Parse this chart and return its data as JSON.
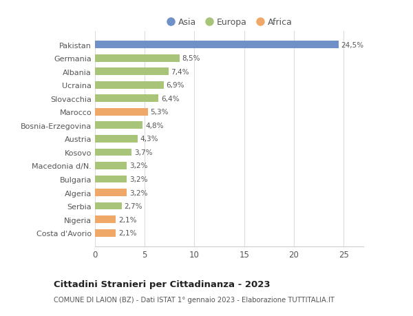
{
  "categories": [
    "Costa d'Avorio",
    "Nigeria",
    "Serbia",
    "Algeria",
    "Bulgaria",
    "Macedonia d/N.",
    "Kosovo",
    "Austria",
    "Bosnia-Erzegovina",
    "Marocco",
    "Slovacchia",
    "Ucraina",
    "Albania",
    "Germania",
    "Pakistan"
  ],
  "values": [
    2.1,
    2.1,
    2.7,
    3.2,
    3.2,
    3.2,
    3.7,
    4.3,
    4.8,
    5.3,
    6.4,
    6.9,
    7.4,
    8.5,
    24.5
  ],
  "labels": [
    "2,1%",
    "2,1%",
    "2,7%",
    "3,2%",
    "3,2%",
    "3,2%",
    "3,7%",
    "4,3%",
    "4,8%",
    "5,3%",
    "6,4%",
    "6,9%",
    "7,4%",
    "8,5%",
    "24,5%"
  ],
  "colors": [
    "#f0a868",
    "#f0a868",
    "#a8c478",
    "#f0a868",
    "#a8c478",
    "#a8c478",
    "#a8c478",
    "#a8c478",
    "#a8c478",
    "#f0a868",
    "#a8c478",
    "#a8c478",
    "#a8c478",
    "#a8c478",
    "#7090c8"
  ],
  "legend_labels": [
    "Asia",
    "Europa",
    "Africa"
  ],
  "legend_colors": [
    "#7090c8",
    "#a8c478",
    "#f0a868"
  ],
  "title": "Cittadini Stranieri per Cittadinanza - 2023",
  "subtitle": "COMUNE DI LAION (BZ) - Dati ISTAT 1° gennaio 2023 - Elaborazione TUTTITALIA.IT",
  "xlim": [
    0,
    27
  ],
  "xticks": [
    0,
    5,
    10,
    15,
    20,
    25
  ],
  "bg_color": "#ffffff",
  "bar_height": 0.55
}
